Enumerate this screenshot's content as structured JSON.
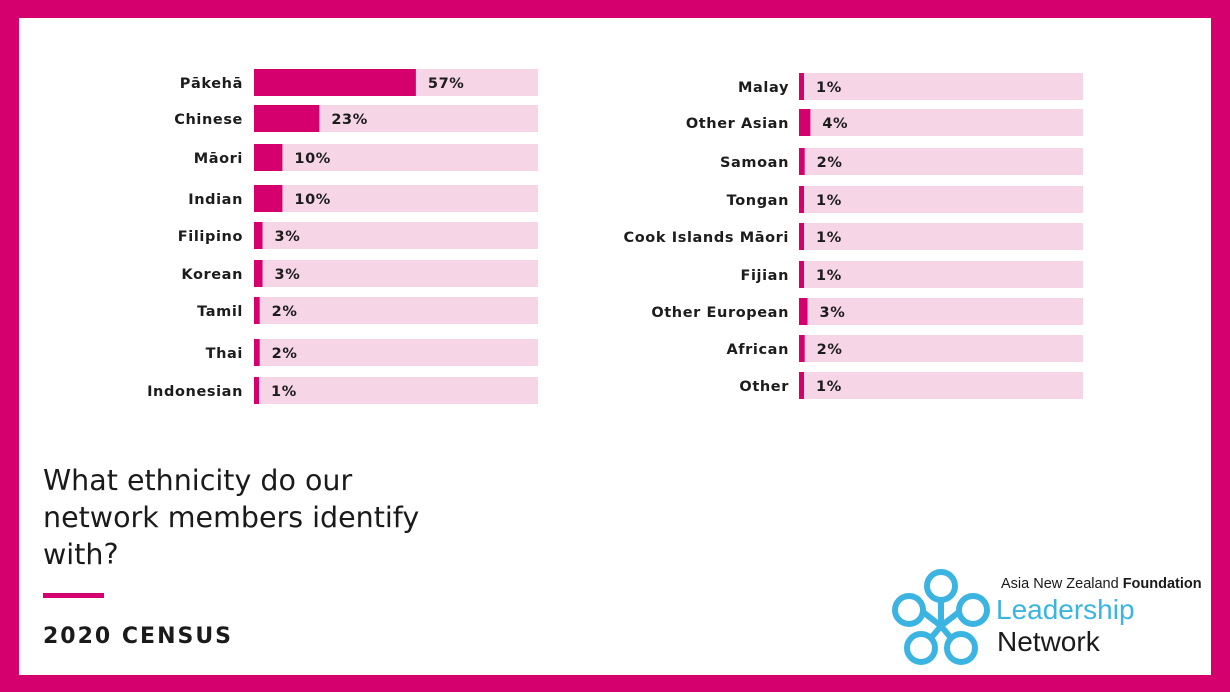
{
  "colors": {
    "accent": "#d5006d",
    "bar_track": "#f6d5e6",
    "background": "#ffffff",
    "logo_blue": "#3cb4e2",
    "text": "#1a1a1a"
  },
  "heading": {
    "question": "What ethnicity do our network members identify with?",
    "subtitle": "2020 CENSUS"
  },
  "logo": {
    "org_prefix": "Asia New Zealand ",
    "org_bold": "Foundation",
    "line1": "Leadership",
    "line2": "Network",
    "icon": "interlocking-knot-icon"
  },
  "chart_data": [
    {
      "type": "bar",
      "orientation": "horizontal",
      "xlim": [
        0,
        100
      ],
      "categories": [
        "Pākehā",
        "Chinese",
        "Māori",
        "Indian",
        "Filipino",
        "Korean",
        "Tamil",
        "Thai",
        "Indonesian"
      ],
      "values": [
        57,
        23,
        10,
        10,
        3,
        3,
        2,
        2,
        1
      ],
      "value_labels": [
        "57%",
        "23%",
        "10%",
        "10%",
        "3%",
        "3%",
        "2%",
        "2%",
        "1%"
      ]
    },
    {
      "type": "bar",
      "orientation": "horizontal",
      "xlim": [
        0,
        100
      ],
      "categories": [
        "Malay",
        "Other Asian",
        "Samoan",
        "Tongan",
        "Cook Islands Māori",
        "Fijian",
        "Other European",
        "African",
        "Other"
      ],
      "values": [
        1,
        4,
        2,
        1,
        1,
        1,
        3,
        2,
        1
      ],
      "value_labels": [
        "1%",
        "4%",
        "2%",
        "1%",
        "1%",
        "1%",
        "3%",
        "2%",
        "1%"
      ]
    }
  ]
}
